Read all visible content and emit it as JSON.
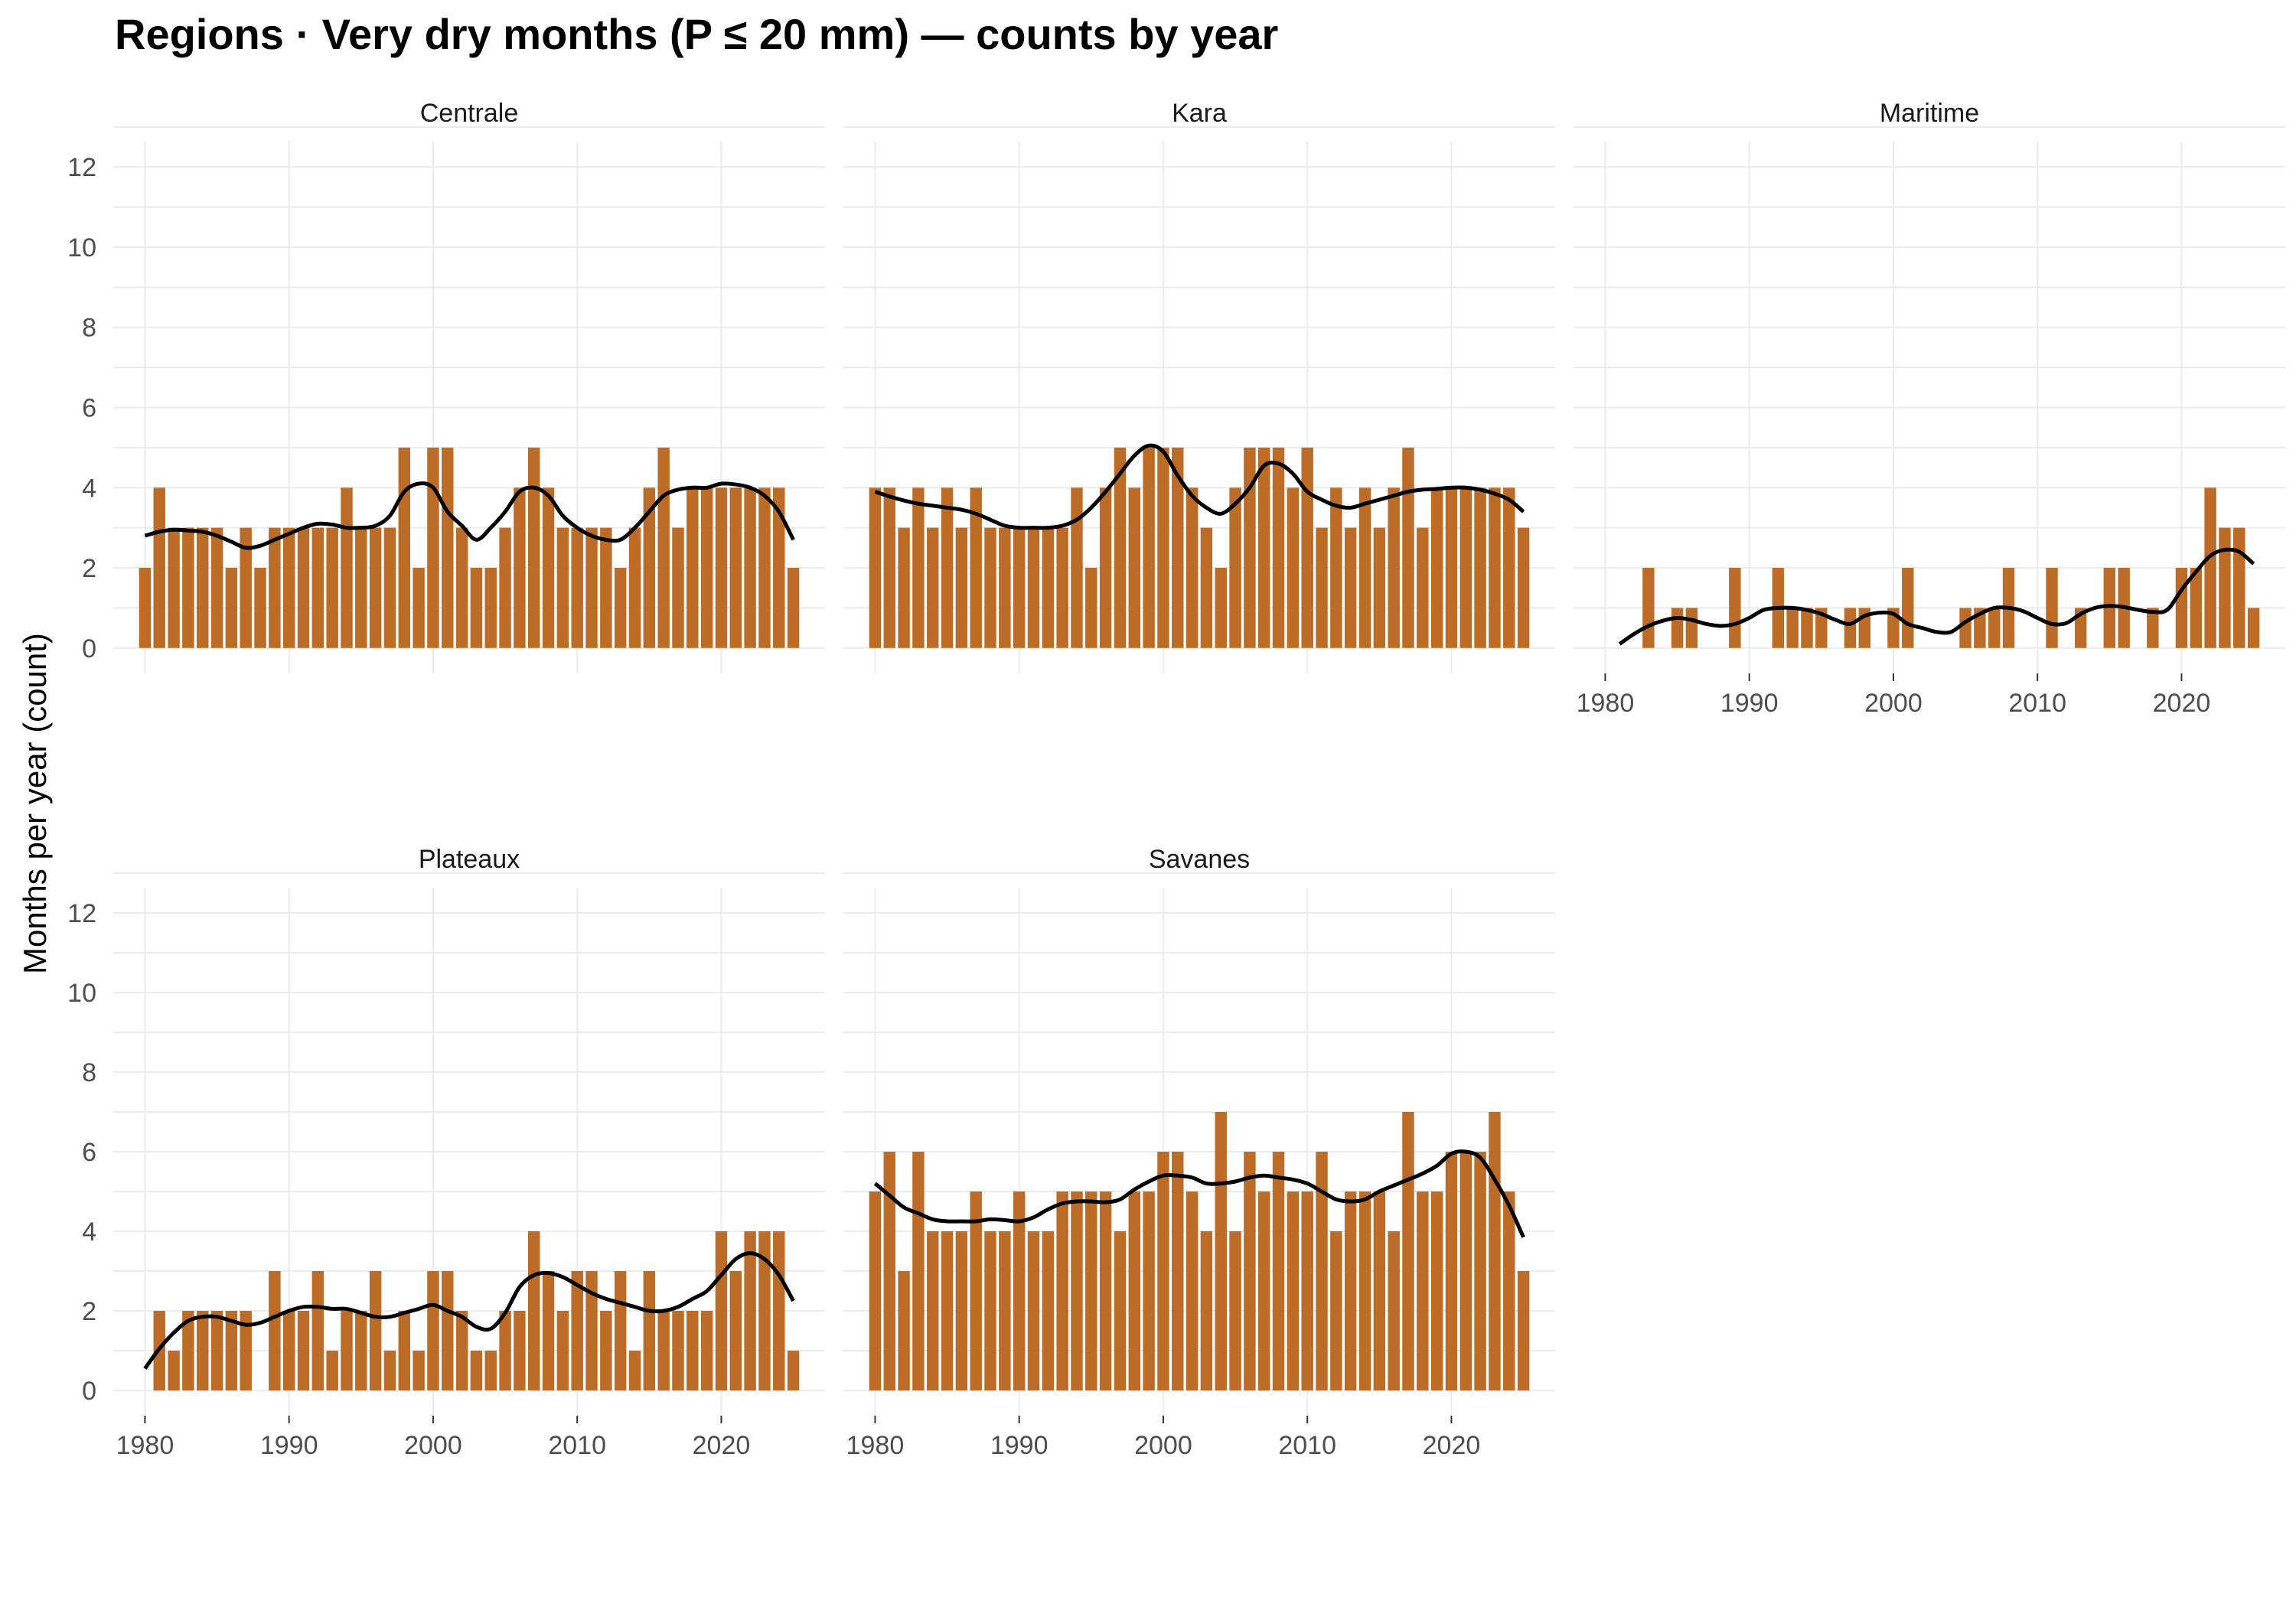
{
  "chart_data": {
    "type": "bar",
    "title": "Regions · Very dry months (P ≤ 20 mm) — counts by year",
    "ylabel": "Months per year (count)",
    "xlabel": "",
    "ylim": [
      0,
      12
    ],
    "y_ticks": [
      0,
      2,
      4,
      6,
      8,
      10,
      12
    ],
    "x_ticks": [
      1980,
      1990,
      2000,
      2010,
      2020
    ],
    "grid": true,
    "colors": {
      "bar": "#BD6C27",
      "smooth": "#000000"
    },
    "x": [
      1980,
      1981,
      1982,
      1983,
      1984,
      1985,
      1986,
      1987,
      1988,
      1989,
      1990,
      1991,
      1992,
      1993,
      1994,
      1995,
      1996,
      1997,
      1998,
      1999,
      2000,
      2001,
      2002,
      2003,
      2004,
      2005,
      2006,
      2007,
      2008,
      2009,
      2010,
      2011,
      2012,
      2013,
      2014,
      2015,
      2016,
      2017,
      2018,
      2019,
      2020,
      2021,
      2022,
      2023,
      2024,
      2025
    ],
    "panels": [
      {
        "name": "Centrale",
        "values": [
          2,
          4,
          3,
          3,
          3,
          3,
          2,
          3,
          2,
          3,
          3,
          3,
          3,
          3,
          4,
          3,
          3,
          3,
          5,
          2,
          5,
          5,
          3,
          2,
          2,
          3,
          4,
          5,
          4,
          3,
          3,
          3,
          3,
          2,
          3,
          4,
          5,
          3,
          4,
          4,
          4,
          4,
          4,
          4,
          4,
          2
        ],
        "smooth": [
          2.8,
          2.9,
          2.95,
          2.93,
          2.9,
          2.8,
          2.65,
          2.5,
          2.55,
          2.7,
          2.85,
          3.0,
          3.1,
          3.08,
          3.0,
          3.0,
          3.05,
          3.3,
          3.9,
          4.1,
          4.0,
          3.4,
          3.05,
          2.7,
          3.0,
          3.4,
          3.9,
          4.0,
          3.8,
          3.3,
          3.0,
          2.8,
          2.7,
          2.7,
          3.0,
          3.4,
          3.8,
          3.95,
          4.0,
          4.0,
          4.1,
          4.08,
          4.0,
          3.8,
          3.4,
          2.7
        ]
      },
      {
        "name": "Kara",
        "values": [
          4,
          4,
          3,
          4,
          3,
          4,
          3,
          4,
          3,
          3,
          3,
          3,
          3,
          3,
          4,
          2,
          4,
          5,
          4,
          5,
          5,
          5,
          4,
          3,
          2,
          4,
          5,
          5,
          5,
          4,
          5,
          3,
          4,
          3,
          4,
          3,
          4,
          5,
          3,
          4,
          4,
          4,
          4,
          4,
          4,
          3
        ],
        "smooth": [
          3.9,
          3.78,
          3.68,
          3.6,
          3.55,
          3.5,
          3.45,
          3.35,
          3.2,
          3.05,
          3.0,
          3.0,
          3.0,
          3.05,
          3.2,
          3.5,
          3.9,
          4.35,
          4.8,
          5.05,
          4.9,
          4.3,
          3.8,
          3.5,
          3.35,
          3.6,
          4.0,
          4.55,
          4.6,
          4.35,
          3.9,
          3.7,
          3.55,
          3.5,
          3.6,
          3.7,
          3.8,
          3.9,
          3.95,
          3.97,
          4.0,
          4.0,
          3.95,
          3.85,
          3.7,
          3.4
        ]
      },
      {
        "name": "Maritime",
        "values": [
          0,
          0,
          0,
          2,
          0,
          1,
          1,
          0,
          0,
          2,
          0,
          0,
          2,
          1,
          1,
          1,
          0,
          1,
          1,
          0,
          1,
          2,
          0,
          0,
          0,
          1,
          1,
          1,
          2,
          0,
          0,
          2,
          0,
          1,
          0,
          2,
          2,
          0,
          1,
          0,
          2,
          2,
          4,
          3,
          3,
          1
        ],
        "smooth": [
          null,
          0.1,
          0.35,
          0.55,
          0.68,
          0.75,
          0.7,
          0.6,
          0.55,
          0.6,
          0.75,
          0.95,
          1.0,
          1.0,
          0.95,
          0.85,
          0.7,
          0.6,
          0.8,
          0.88,
          0.85,
          0.6,
          0.5,
          0.4,
          0.4,
          0.65,
          0.85,
          1.0,
          1.0,
          0.92,
          0.75,
          0.6,
          0.62,
          0.85,
          1.0,
          1.05,
          1.02,
          0.95,
          0.9,
          0.95,
          1.45,
          1.9,
          2.3,
          2.45,
          2.4,
          2.1
        ]
      },
      {
        "name": "Plateaux",
        "values": [
          0,
          2,
          1,
          2,
          2,
          2,
          2,
          2,
          0,
          3,
          2,
          2,
          3,
          1,
          2,
          2,
          3,
          1,
          2,
          1,
          3,
          3,
          2,
          1,
          1,
          2,
          2,
          4,
          3,
          2,
          3,
          3,
          2,
          3,
          1,
          3,
          2,
          2,
          2,
          2,
          4,
          3,
          4,
          4,
          4,
          1
        ],
        "smooth": [
          0.55,
          1.05,
          1.45,
          1.75,
          1.85,
          1.85,
          1.75,
          1.65,
          1.7,
          1.85,
          2.0,
          2.1,
          2.1,
          2.05,
          2.05,
          1.95,
          1.85,
          1.85,
          1.95,
          2.05,
          2.15,
          2.0,
          1.85,
          1.6,
          1.55,
          1.95,
          2.6,
          2.9,
          2.95,
          2.85,
          2.65,
          2.45,
          2.3,
          2.2,
          2.1,
          2.0,
          2.0,
          2.1,
          2.3,
          2.5,
          2.9,
          3.3,
          3.45,
          3.3,
          2.9,
          2.25
        ]
      },
      {
        "name": "Savanes",
        "values": [
          5,
          6,
          3,
          6,
          4,
          4,
          4,
          5,
          4,
          4,
          5,
          4,
          4,
          5,
          5,
          5,
          5,
          4,
          5,
          5,
          6,
          6,
          5,
          4,
          7,
          4,
          6,
          5,
          6,
          5,
          5,
          6,
          4,
          5,
          5,
          5,
          4,
          7,
          5,
          5,
          6,
          6,
          6,
          7,
          5,
          3
        ],
        "smooth": [
          5.2,
          4.9,
          4.6,
          4.45,
          4.3,
          4.25,
          4.25,
          4.25,
          4.3,
          4.28,
          4.25,
          4.35,
          4.55,
          4.7,
          4.75,
          4.75,
          4.73,
          4.8,
          5.05,
          5.25,
          5.4,
          5.4,
          5.35,
          5.2,
          5.2,
          5.25,
          5.35,
          5.4,
          5.35,
          5.3,
          5.2,
          5.0,
          4.8,
          4.75,
          4.8,
          5.0,
          5.15,
          5.3,
          5.45,
          5.65,
          5.95,
          6.0,
          5.85,
          5.3,
          4.65,
          3.85
        ]
      }
    ]
  }
}
